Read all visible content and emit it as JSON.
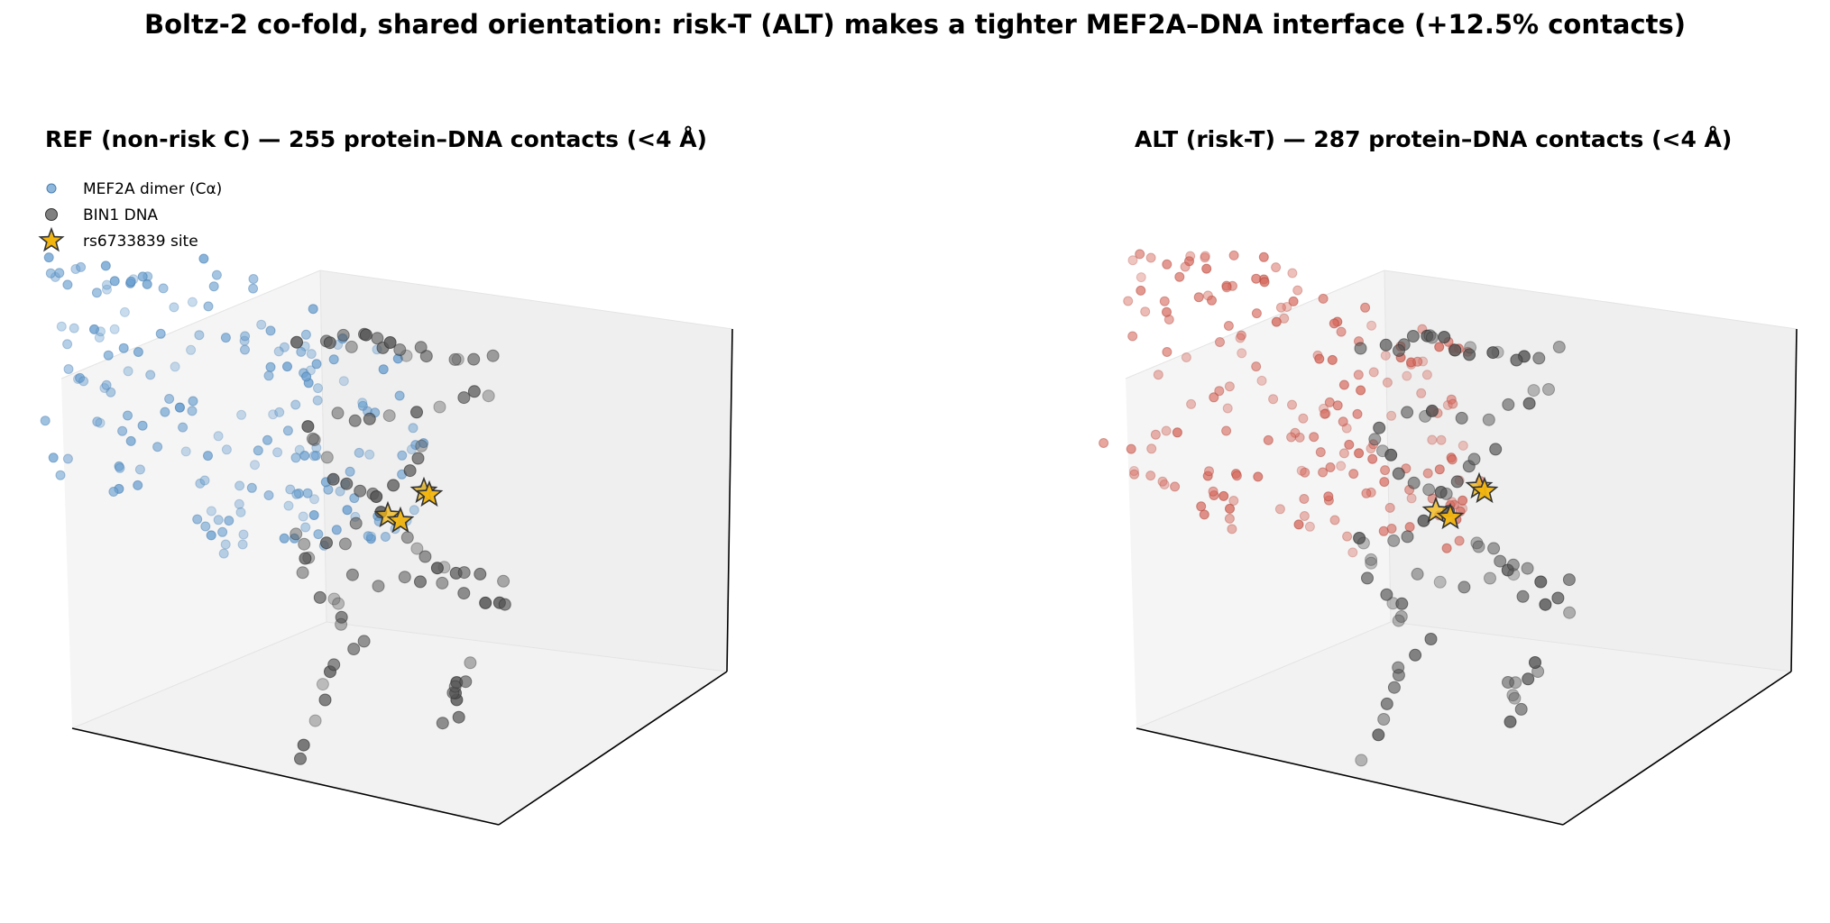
{
  "figure": {
    "title": "Boltz-2 co-fold, shared orientation: risk-T (ALT) makes a tighter MEF2A–DNA interface (+12.5% contacts)"
  },
  "legend": {
    "protein": "MEF2A dimer (Cα)",
    "dna": "BIN1 DNA",
    "site": "rs6733839 site"
  },
  "colors": {
    "ref_protein": "#6a9fd0",
    "alt_protein": "#d76a5e",
    "dna": "#555555",
    "site": "#f2b50f",
    "pane": "#f2f2f2",
    "axis_line": "#000000"
  },
  "chart_data": [
    {
      "type": "scatter",
      "projection": "3d",
      "title": "REF (non-risk C) — 255 protein–DNA contacts (<4 Å)",
      "contacts": 255,
      "series": [
        {
          "name": "MEF2A dimer (Cα)",
          "color": "#6a9fd0",
          "marker": "circle"
        },
        {
          "name": "BIN1 DNA",
          "color": "#555555",
          "marker": "circle"
        },
        {
          "name": "rs6733839 site",
          "color": "#f2b50f",
          "marker": "star"
        }
      ],
      "grid": false,
      "ticks": false,
      "legend_position": "top-left"
    },
    {
      "type": "scatter",
      "projection": "3d",
      "title": "ALT (risk-T) — 287 protein–DNA contacts (<4 Å)",
      "contacts": 287,
      "series": [
        {
          "name": "MEF2A dimer (Cα)",
          "color": "#d76a5e",
          "marker": "circle"
        },
        {
          "name": "BIN1 DNA",
          "color": "#555555",
          "marker": "circle"
        },
        {
          "name": "rs6733839 site",
          "color": "#f2b50f",
          "marker": "star"
        }
      ],
      "grid": false,
      "ticks": false,
      "legend_position": "none"
    }
  ]
}
